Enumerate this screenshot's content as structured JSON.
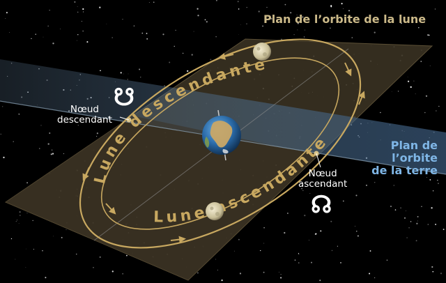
{
  "labels": {
    "moon_orbit_plane": "Plan de l’orbite de la lune",
    "earth_orbit_plane": [
      "Plan de",
      "l’orbite",
      "de la terre"
    ],
    "descending_node": [
      "Nœud",
      "descendant"
    ],
    "ascending_node": [
      "Nœud",
      "ascendant"
    ],
    "descending_moon": "Lune descendante",
    "ascending_moon": "Lune ascendante"
  },
  "symbols": {
    "descending_node": "☋",
    "ascending_node": "☊"
  },
  "colors": {
    "background": "#000000",
    "moon_plane": "#3a3222",
    "orbit_gold": "#c8a860",
    "earth_plane": "#3c5570",
    "earth_label": "#7fb6e6"
  }
}
